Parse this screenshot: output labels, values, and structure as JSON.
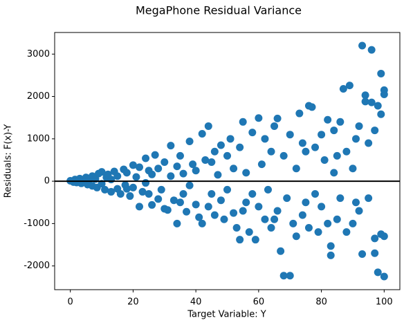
{
  "chart_data": {
    "type": "scatter",
    "title": "MegaPhone Residual Variance",
    "xlabel": "Target Variable: Y",
    "ylabel": "Residuals: F(x)-Y",
    "xlim": [
      -5,
      105
    ],
    "xticks": [
      0,
      20,
      40,
      60,
      80,
      100
    ],
    "ylim": [
      -2560,
      3510
    ],
    "yticks": [
      -2000,
      -1000,
      0,
      1000,
      2000,
      3000
    ],
    "hline": 0,
    "hline_color": "#000000",
    "series": [
      {
        "color": "#1f77b4",
        "x": [
          0,
          1,
          1.5,
          2,
          3,
          3.5,
          4,
          5,
          5.5,
          6,
          7,
          7,
          8,
          8.5,
          9,
          10,
          10,
          11,
          11.5,
          12,
          13,
          13,
          14,
          15,
          15,
          16,
          17,
          17.5,
          18,
          19,
          20,
          20,
          21,
          22,
          22,
          23,
          24,
          24,
          25,
          26,
          26,
          27,
          28,
          28,
          29,
          30,
          30,
          31,
          32,
          32,
          33,
          34,
          34,
          35,
          36,
          36,
          37,
          38,
          38,
          39,
          40,
          40,
          41,
          42,
          42,
          43,
          44,
          44,
          45,
          46,
          46,
          47,
          48,
          48,
          49,
          50,
          50,
          51,
          52,
          52,
          53,
          54,
          54,
          55,
          56,
          56,
          57,
          58,
          58,
          59,
          60,
          60,
          61,
          62,
          62,
          63,
          64,
          64,
          65,
          66,
          66,
          67,
          68,
          68,
          69,
          70,
          70,
          71,
          72,
          72,
          73,
          74,
          74,
          75,
          76,
          76,
          77,
          78,
          78,
          79,
          80,
          80,
          81,
          82,
          82,
          83,
          83,
          84,
          84,
          85,
          86,
          86,
          87,
          88,
          88,
          89,
          90,
          90,
          91,
          92,
          92,
          93,
          93,
          94,
          94,
          95,
          96,
          96,
          97,
          97,
          98,
          98,
          99,
          99,
          99,
          100,
          100,
          100,
          100,
          95,
          18,
          25,
          35,
          45,
          55,
          65,
          75,
          85,
          91,
          97
        ],
        "values": [
          10,
          -20,
          40,
          -30,
          60,
          -50,
          20,
          90,
          -80,
          30,
          120,
          -110,
          50,
          -150,
          180,
          -60,
          220,
          -200,
          90,
          160,
          -250,
          40,
          230,
          -180,
          120,
          -300,
          280,
          -90,
          200,
          -350,
          380,
          -150,
          100,
          -600,
          330,
          -250,
          540,
          -40,
          250,
          -560,
          160,
          620,
          -420,
          300,
          -200,
          450,
          -650,
          -680,
          840,
          120,
          -450,
          -1000,
          350,
          600,
          -300,
          180,
          -720,
          940,
          -100,
          400,
          -550,
          250,
          -850,
          1120,
          -1000,
          500,
          1300,
          -600,
          -300,
          700,
          -800,
          150,
          850,
          -450,
          -900,
          600,
          -200,
          1000,
          -750,
          300,
          -1100,
          -1380,
          800,
          1400,
          -500,
          200,
          -1200,
          1150,
          -300,
          -1380,
          1490,
          -600,
          400,
          -900,
          1000,
          -200,
          700,
          -1100,
          1300,
          1480,
          -700,
          -1650,
          -2230,
          600,
          -400,
          -2230,
          1100,
          -1000,
          300,
          -1300,
          1600,
          -800,
          900,
          -500,
          1780,
          -1100,
          1750,
          -300,
          800,
          -1200,
          1100,
          -600,
          500,
          -1000,
          1450,
          -1750,
          -1530,
          200,
          1200,
          -900,
          1400,
          -400,
          2180,
          -1200,
          700,
          2260,
          -1000,
          300,
          1000,
          -700,
          1300,
          3200,
          -1720,
          2030,
          1880,
          -400,
          3100,
          1860,
          -1350,
          -1700,
          1780,
          -2150,
          2540,
          1580,
          -1250,
          2150,
          2050,
          -2250,
          -1300,
          900,
          -180,
          -300,
          -500,
          450,
          -700,
          -900,
          700,
          600,
          -500,
          1200
        ]
      }
    ]
  }
}
